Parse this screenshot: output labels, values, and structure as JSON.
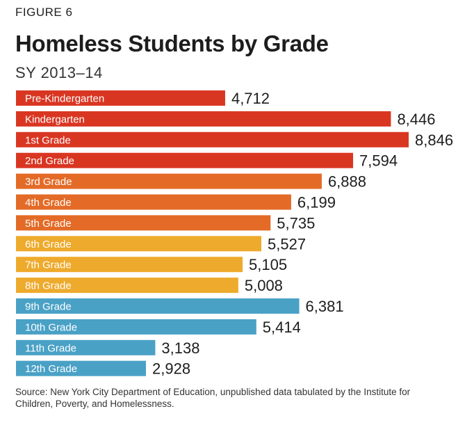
{
  "figure_label": "FIGURE 6",
  "chart_data": {
    "type": "bar",
    "orientation": "horizontal",
    "title": "Homeless Students by Grade",
    "subtitle": "SY 2013–14",
    "categories": [
      "Pre-Kindergarten",
      "Kindergarten",
      "1st Grade",
      "2nd Grade",
      "3rd Grade",
      "4th Grade",
      "5th Grade",
      "6th Grade",
      "7th Grade",
      "8th Grade",
      "9th Grade",
      "10th Grade",
      "11th Grade",
      "12th Grade"
    ],
    "values": [
      4712,
      8446,
      8846,
      7594,
      6888,
      6199,
      5735,
      5527,
      5105,
      5008,
      6381,
      5414,
      3138,
      2928
    ],
    "value_labels": [
      "4,712",
      "8,446",
      "8,846",
      "7,594",
      "6,888",
      "6,199",
      "5,735",
      "5,527",
      "5,105",
      "5,008",
      "6,381",
      "5,414",
      "3,138",
      "2,928"
    ],
    "colors": [
      "#d93622",
      "#d93622",
      "#d93622",
      "#d93622",
      "#e36b27",
      "#e36b27",
      "#e36b27",
      "#eeaa2c",
      "#eeaa2c",
      "#eeaa2c",
      "#4aa1c6",
      "#4aa1c6",
      "#4aa1c6",
      "#4aa1c6"
    ],
    "xlim": [
      0,
      8846
    ],
    "grid": false,
    "legend": "none"
  },
  "source": "Source: New York City Department of Education, unpublished data tabulated by the Institute for Children, Poverty, and Homelessness."
}
